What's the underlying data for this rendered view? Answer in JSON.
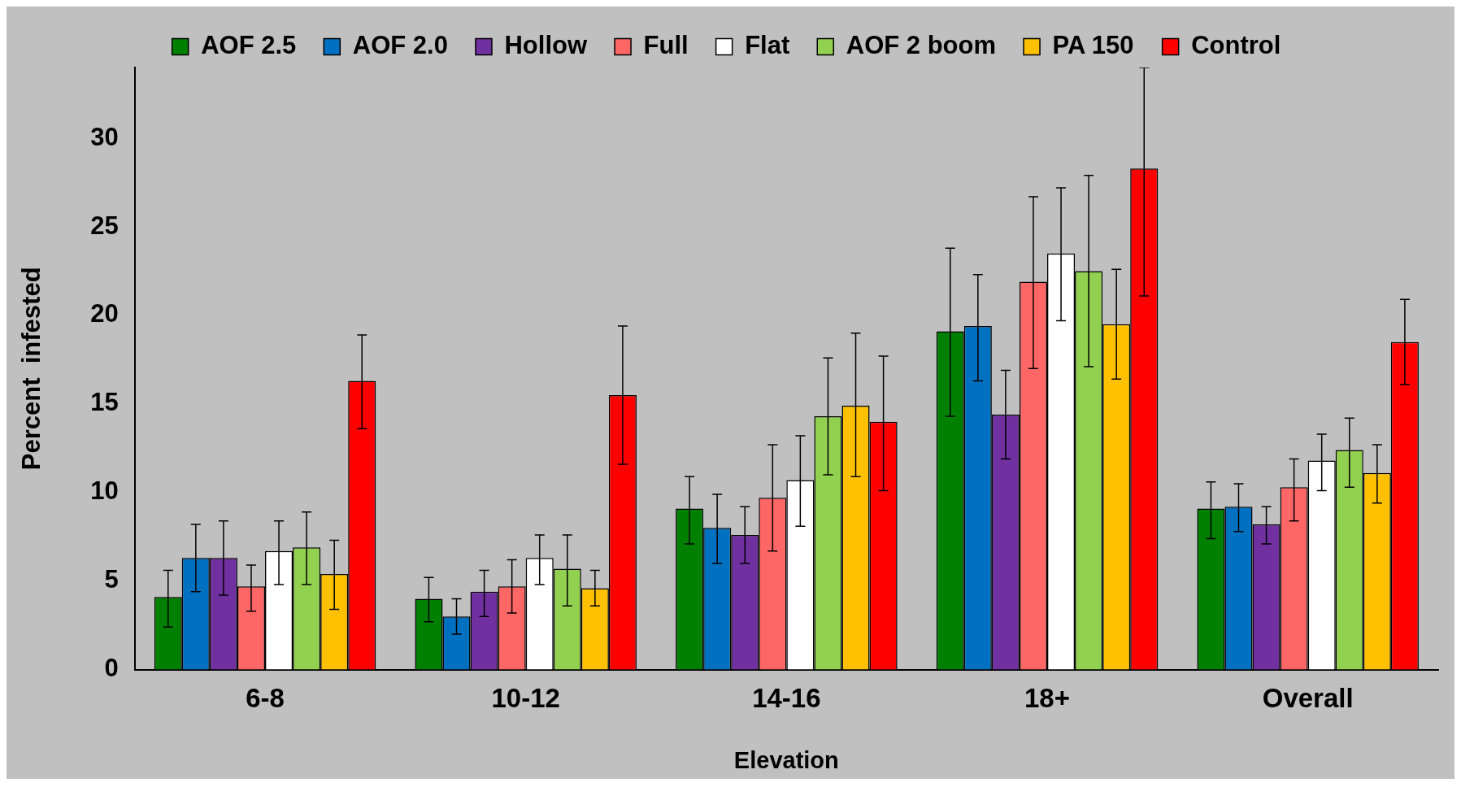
{
  "chart_data": {
    "type": "bar",
    "xlabel": "Elevation",
    "ylabel": "Percent  infested",
    "categories": [
      "6-8",
      "10-12",
      "14-16",
      "18+",
      "Overall"
    ],
    "ylim": [
      0,
      34
    ],
    "yticks": [
      0,
      5,
      10,
      15,
      20,
      25,
      30
    ],
    "grid": false,
    "legend": "top",
    "series": [
      {
        "name": "AOF 2.5",
        "color": "#008000",
        "values": [
          4.1,
          4.0,
          9.1,
          19.1,
          9.1
        ],
        "errors": [
          [
            2.4,
            5.6
          ],
          [
            2.7,
            5.2
          ],
          [
            7.1,
            10.9
          ],
          [
            14.3,
            23.8
          ],
          [
            7.4,
            10.6
          ]
        ]
      },
      {
        "name": "AOF 2.0",
        "color": "#0070c0",
        "values": [
          6.3,
          3.0,
          8.0,
          19.4,
          9.2
        ],
        "errors": [
          [
            4.4,
            8.2
          ],
          [
            2.0,
            4.0
          ],
          [
            6.0,
            9.9
          ],
          [
            16.3,
            22.3
          ],
          [
            7.8,
            10.5
          ]
        ]
      },
      {
        "name": "Hollow",
        "color": "#7030a0",
        "values": [
          6.3,
          4.4,
          7.6,
          14.4,
          8.2
        ],
        "errors": [
          [
            4.2,
            8.4
          ],
          [
            3.0,
            5.6
          ],
          [
            6.0,
            9.2
          ],
          [
            11.9,
            16.9
          ],
          [
            7.1,
            9.2
          ]
        ]
      },
      {
        "name": "Full",
        "color": "#ff6666",
        "values": [
          4.7,
          4.7,
          9.7,
          21.9,
          10.3
        ],
        "errors": [
          [
            3.3,
            5.9
          ],
          [
            3.2,
            6.2
          ],
          [
            6.7,
            12.7
          ],
          [
            17.0,
            26.7
          ],
          [
            8.4,
            11.9
          ]
        ]
      },
      {
        "name": "Flat",
        "color": "#ffffff",
        "values": [
          6.7,
          6.3,
          10.7,
          23.5,
          11.8
        ],
        "errors": [
          [
            4.8,
            8.4
          ],
          [
            4.8,
            7.6
          ],
          [
            8.1,
            13.2
          ],
          [
            19.7,
            27.2
          ],
          [
            10.1,
            13.3
          ]
        ]
      },
      {
        "name": "AOF 2 boom",
        "color": "#92d050",
        "values": [
          6.9,
          5.7,
          14.3,
          22.5,
          12.4
        ],
        "errors": [
          [
            4.8,
            8.9
          ],
          [
            3.6,
            7.6
          ],
          [
            11.0,
            17.6
          ],
          [
            17.1,
            27.9
          ],
          [
            10.3,
            14.2
          ]
        ]
      },
      {
        "name": "PA 150",
        "color": "#ffc000",
        "values": [
          5.4,
          4.6,
          14.9,
          19.5,
          11.1
        ],
        "errors": [
          [
            3.4,
            7.3
          ],
          [
            3.6,
            5.6
          ],
          [
            10.9,
            19.0
          ],
          [
            16.4,
            22.6
          ],
          [
            9.4,
            12.7
          ]
        ]
      },
      {
        "name": "Control",
        "color": "#ff0000",
        "values": [
          16.3,
          15.5,
          14.0,
          28.3,
          18.5
        ],
        "errors": [
          [
            13.6,
            18.9
          ],
          [
            11.6,
            19.4
          ],
          [
            10.1,
            17.7
          ],
          [
            21.1,
            34
          ],
          [
            16.1,
            20.9
          ]
        ]
      }
    ]
  }
}
